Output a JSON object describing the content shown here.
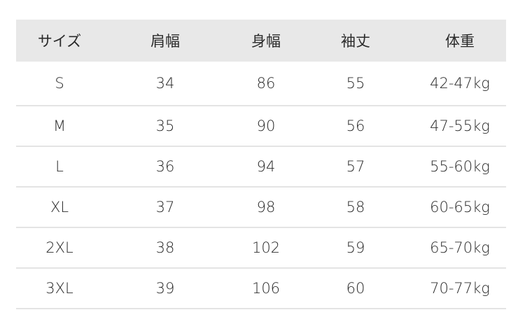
{
  "headers": [
    "サイズ",
    "肩幅",
    "身幅",
    "袖丈",
    "体重"
  ],
  "rows": [
    [
      "S",
      "34",
      "86",
      "55",
      "42-47kg"
    ],
    [
      "M",
      "35",
      "90",
      "56",
      "47-55kg"
    ],
    [
      "L",
      "36",
      "94",
      "57",
      "55-60kg"
    ],
    [
      "XL",
      "37",
      "98",
      "58",
      "60-65kg"
    ],
    [
      "2XL",
      "38",
      "102",
      "59",
      "65-70kg"
    ],
    [
      "3XL",
      "39",
      "106",
      "60",
      "70-77kg"
    ]
  ],
  "colors": {
    "header_bg": "#e8e8e8",
    "divider": "#e4e4e4",
    "text": "#2a2a2a"
  }
}
